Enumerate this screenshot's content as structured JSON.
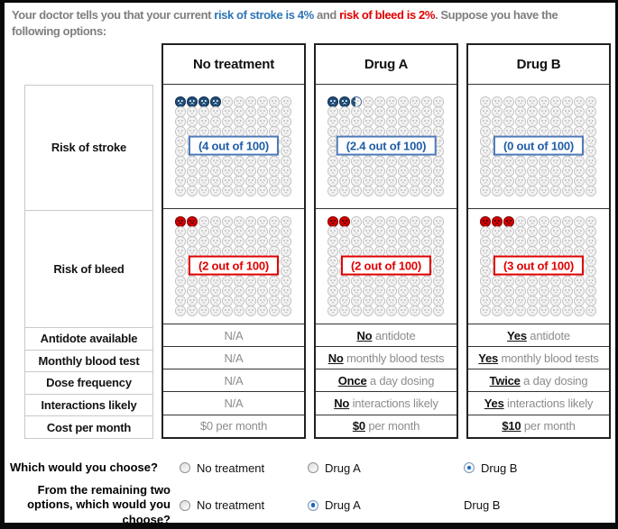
{
  "colors": {
    "stroke_blue": "#2E74B5",
    "bleed_red": "#E00000",
    "icon_blue": "#1F4E79",
    "icon_red": "#D40000"
  },
  "intro": {
    "prefix": "Your doctor tells you that your current ",
    "stroke": "risk of stroke is 4%",
    "and": " and ",
    "bleed": "risk of bleed is 2%",
    "suffix": ". Suppose you have the following options:"
  },
  "row_labels": [
    "Risk of stroke",
    "Risk of bleed",
    "Antidote available",
    "Monthly blood test",
    "Dose frequency",
    "Interactions likely",
    "Cost per month"
  ],
  "columns": [
    {
      "name": "No treatment",
      "stroke": {
        "label": "(4 out of 100)",
        "filled": 4,
        "partial": 0
      },
      "bleed": {
        "label": "(2 out of 100)",
        "filled": 2,
        "partial": 0
      },
      "rows": [
        {
          "strong": "",
          "rest": "N/A"
        },
        {
          "strong": "",
          "rest": "N/A"
        },
        {
          "strong": "",
          "rest": "N/A"
        },
        {
          "strong": "",
          "rest": "N/A"
        },
        {
          "strong": "",
          "rest": "$0 per month"
        }
      ]
    },
    {
      "name": "Drug A",
      "stroke": {
        "label": "(2.4 out of 100)",
        "filled": 2,
        "partial": 0.4
      },
      "bleed": {
        "label": "(2 out of 100)",
        "filled": 2,
        "partial": 0
      },
      "rows": [
        {
          "strong": "No",
          "rest": " antidote"
        },
        {
          "strong": "No",
          "rest": " monthly blood tests"
        },
        {
          "strong": "Once",
          "rest": " a day dosing"
        },
        {
          "strong": "No",
          "rest": " interactions likely"
        },
        {
          "strong": "$0",
          "rest": " per month"
        }
      ]
    },
    {
      "name": "Drug B",
      "stroke": {
        "label": "(0 out of 100)",
        "filled": 0,
        "partial": 0
      },
      "bleed": {
        "label": "(3 out of 100)",
        "filled": 3,
        "partial": 0
      },
      "rows": [
        {
          "strong": "Yes",
          "rest": " antidote"
        },
        {
          "strong": "Yes",
          "rest": " monthly blood tests"
        },
        {
          "strong": "Twice",
          "rest": " a day dosing"
        },
        {
          "strong": "Yes",
          "rest": " interactions likely"
        },
        {
          "strong": "$10",
          "rest": " per month"
        }
      ]
    }
  ],
  "questions": [
    {
      "label": "Which would you choose?",
      "options": [
        {
          "label": "No treatment",
          "selected": false,
          "radio": true
        },
        {
          "label": "Drug A",
          "selected": false,
          "radio": true
        },
        {
          "label": "Drug B",
          "selected": true,
          "radio": true
        }
      ]
    },
    {
      "label": "From the remaining two options, which would you choose?",
      "options": [
        {
          "label": "No treatment",
          "selected": false,
          "radio": true
        },
        {
          "label": "Drug A",
          "selected": true,
          "radio": true
        },
        {
          "label": "Drug B",
          "selected": false,
          "radio": false
        }
      ]
    }
  ]
}
